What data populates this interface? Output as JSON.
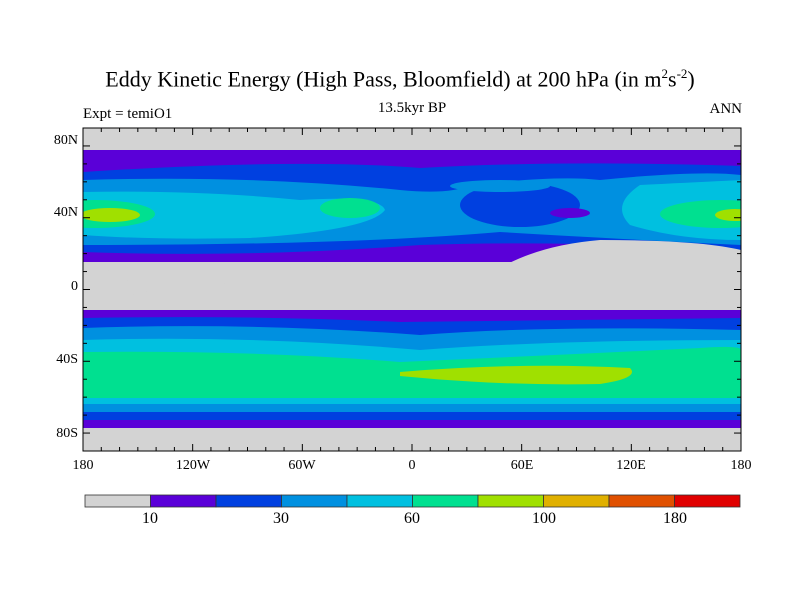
{
  "title": {
    "main": "Eddy Kinetic Energy (High Pass, Bloomfield) at 200 hPa (in m",
    "sup1": "2",
    "s": "s",
    "sup2": "-2",
    "close": ")"
  },
  "subtitle": "13.5kyr BP",
  "left_label": "Expt = temiO1",
  "right_label": "ANN",
  "map": {
    "lat_ticks": [
      "80N",
      "40N",
      "0",
      "40S",
      "80S"
    ],
    "lon_ticks": [
      "180",
      "120W",
      "60W",
      "0",
      "60E",
      "120E",
      "180"
    ]
  },
  "colorbar": {
    "colors": [
      "#d3d3d3",
      "#5a00d8",
      "#0040e0",
      "#0090e0",
      "#00c0e0",
      "#00e090",
      "#a0e000",
      "#e0b000",
      "#e05000",
      "#e00000"
    ],
    "labels": [
      "10",
      "30",
      "60",
      "100",
      "180"
    ]
  }
}
